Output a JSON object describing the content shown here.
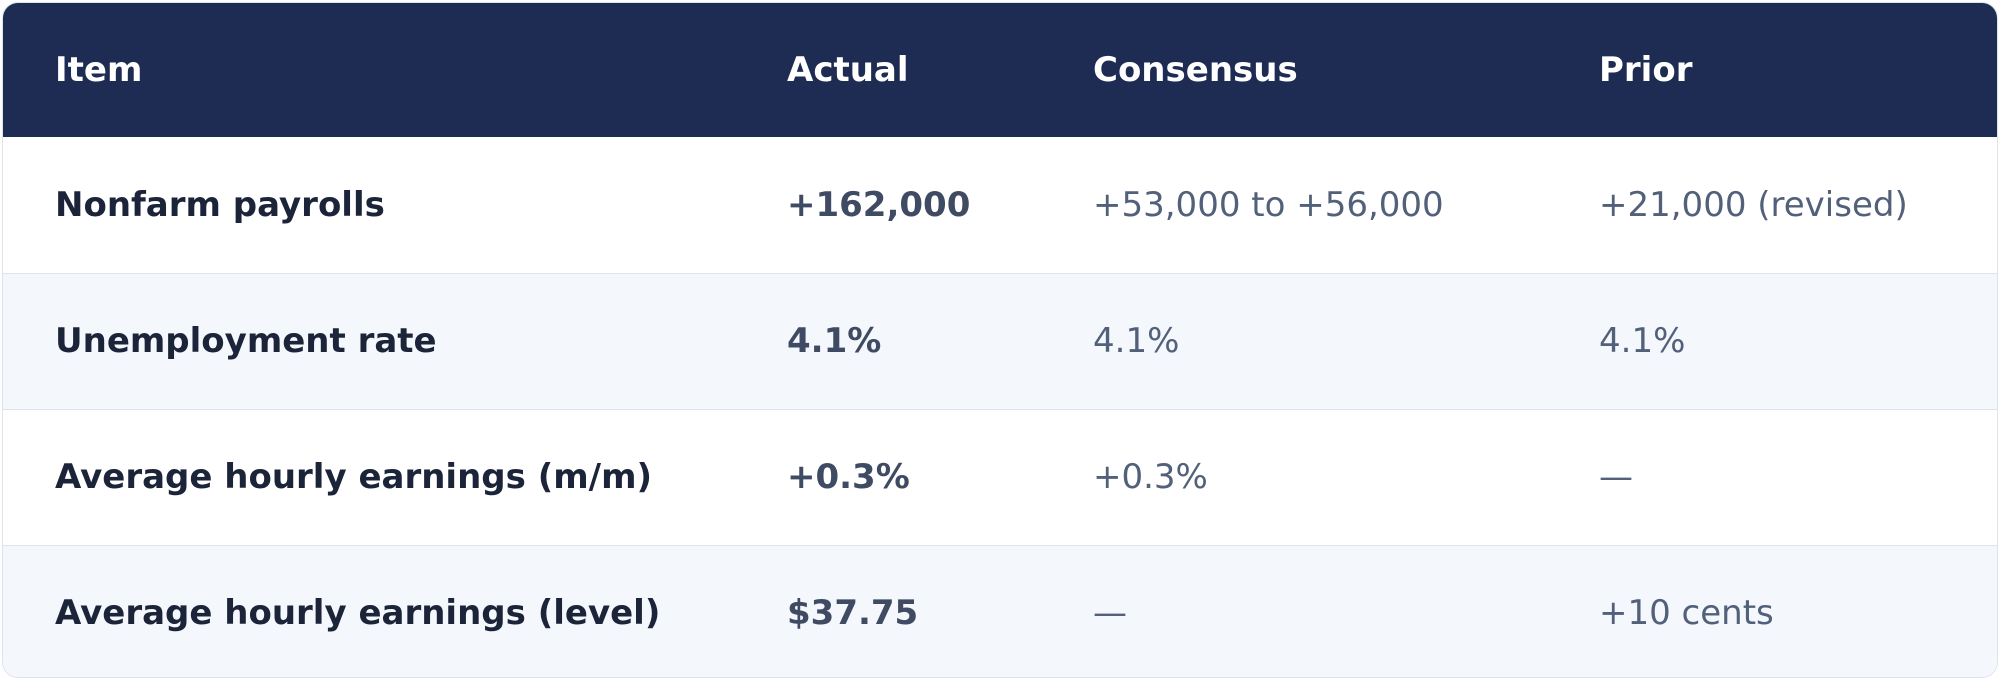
{
  "table": {
    "headers": {
      "item": "Item",
      "actual": "Actual",
      "consensus": "Consensus",
      "prior": "Prior"
    },
    "rows": [
      {
        "item": "Nonfarm payrolls",
        "actual": "+162,000",
        "consensus": "+53,000 to +56,000",
        "prior": "+21,000 (revised)"
      },
      {
        "item": "Unemployment rate",
        "actual": "4.1%",
        "consensus": "4.1%",
        "prior": "4.1%"
      },
      {
        "item": "Average hourly earnings (m/m)",
        "actual": "+0.3%",
        "consensus": "+0.3%",
        "prior": "—"
      },
      {
        "item": "Average hourly earnings (level)",
        "actual": "$37.75",
        "consensus": "—",
        "prior": "+10 cents"
      }
    ]
  },
  "colors": {
    "header_bg": "#1e2b52",
    "header_text": "#ffffff",
    "row_alt_bg": "#f4f7fc",
    "border": "#dde4ee"
  }
}
